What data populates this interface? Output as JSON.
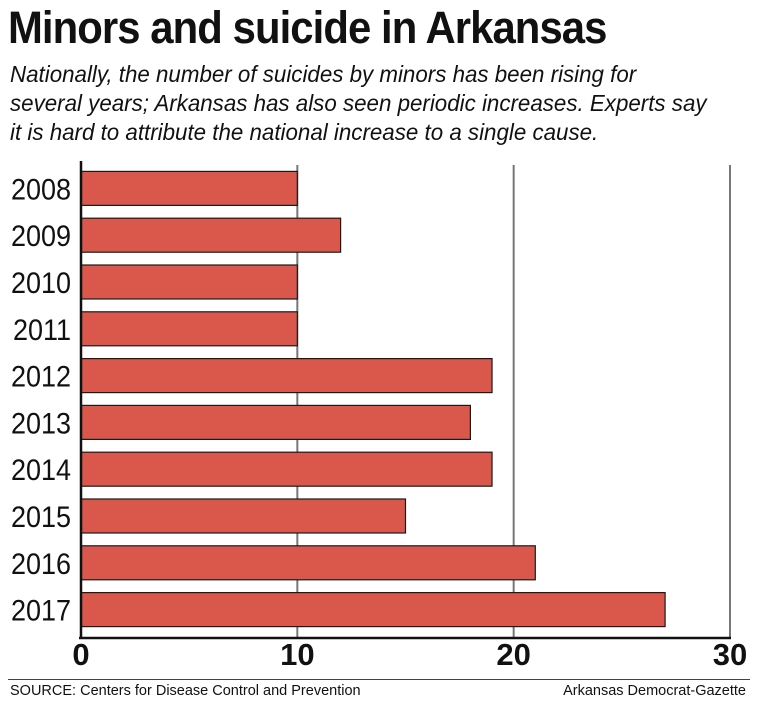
{
  "title": "Minors and suicide in Arkansas",
  "subtitle": "Nationally, the number of suicides by minors has been rising for several years; Arkansas has also seen periodic increases. Experts say it is hard to attribute the national increase to a single cause.",
  "source": "SOURCE: Centers for Disease Control and Prevention",
  "credit": "Arkansas Democrat-Gazette",
  "colors": {
    "bar": "#d9574b",
    "bar_stroke": "#1a1a1a",
    "grid": "#777777"
  },
  "chart_data": {
    "type": "bar",
    "orientation": "horizontal",
    "categories": [
      "2008",
      "2009",
      "2010",
      "2011",
      "2012",
      "2013",
      "2014",
      "2015",
      "2016",
      "2017"
    ],
    "values": [
      10,
      12,
      10,
      10,
      19,
      18,
      19,
      15,
      21,
      27
    ],
    "xlim": [
      0,
      30
    ],
    "x_ticks": [
      "0",
      "10",
      "20",
      "30"
    ],
    "xlabel": "",
    "ylabel": "",
    "grid": true,
    "legend": "none"
  }
}
